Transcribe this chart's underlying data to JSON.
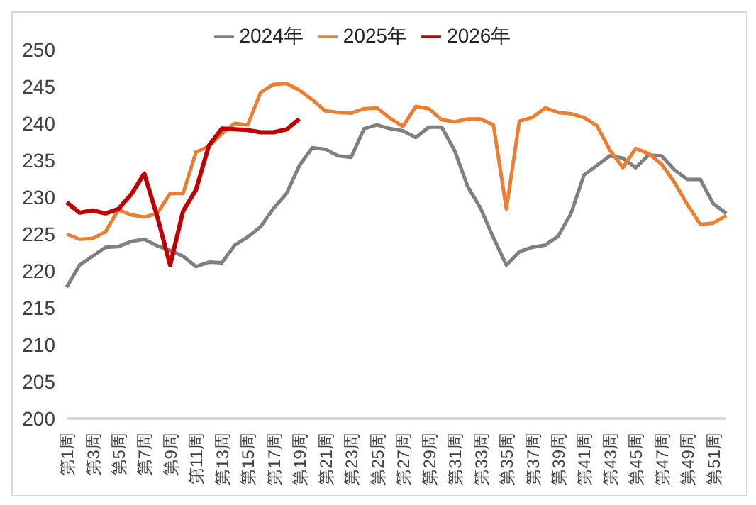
{
  "chart_data": {
    "type": "line",
    "categories": [
      "第1周",
      null,
      "第3周",
      null,
      "第5周",
      null,
      "第7周",
      null,
      "第9周",
      null,
      "第11周",
      null,
      "第13周",
      null,
      "第15周",
      null,
      "第17周",
      null,
      "第19周",
      null,
      "第21周",
      null,
      "第23周",
      null,
      "第25周",
      null,
      "第27周",
      null,
      "第29周",
      null,
      "第31周",
      null,
      "第33周",
      null,
      "第35周",
      null,
      "第37周",
      null,
      "第39周",
      null,
      "第41周",
      null,
      "第43周",
      null,
      "第45周",
      null,
      "第47周",
      null,
      "第49周",
      null,
      "第51周",
      null
    ],
    "series": [
      {
        "name": "2024年",
        "color": "#7f7f7f",
        "values": [
          217.8,
          220.8,
          222,
          223.2,
          223.3,
          224,
          224.3,
          223.4,
          222.8,
          222,
          220.6,
          221.2,
          221.1,
          223.5,
          224.6,
          226,
          228.5,
          230.5,
          234.3,
          236.7,
          236.5,
          235.6,
          235.4,
          239.3,
          239.8,
          239.3,
          239,
          238.1,
          239.5,
          239.5,
          236.3,
          231.5,
          228.5,
          224.5,
          220.8,
          222.6,
          223.2,
          223.5,
          224.7,
          227.8,
          233,
          234.3,
          235.6,
          235.3,
          234,
          235.7,
          235.6,
          233.7,
          232.4,
          232.4,
          229.1,
          227.8
        ]
      },
      {
        "name": "2025年",
        "color": "#ed7d31",
        "values": [
          225,
          224.3,
          224.4,
          225.3,
          228.3,
          227.6,
          227.3,
          227.8,
          230.5,
          230.5,
          236.1,
          236.9,
          238.6,
          240,
          239.8,
          244.2,
          245.3,
          245.4,
          244.5,
          243.2,
          241.7,
          241.5,
          241.4,
          242,
          242.1,
          240.7,
          239.6,
          242.3,
          242,
          240.5,
          240.2,
          240.6,
          240.6,
          239.8,
          228.4,
          240.3,
          240.8,
          242.1,
          241.5,
          241.3,
          240.8,
          239.7,
          236.4,
          234,
          236.6,
          235.9,
          234.5,
          232,
          229,
          226.3,
          226.5,
          227.5
        ]
      },
      {
        "name": "2026年",
        "color": "#c00000",
        "values": [
          229.3,
          227.9,
          228.2,
          227.8,
          228.4,
          230.4,
          233.2,
          227.4,
          220.8,
          228.1,
          231,
          237,
          239.3,
          239.2,
          239.1,
          238.8,
          238.8,
          239.2,
          240.6,
          null,
          null,
          null,
          null,
          null,
          null,
          null,
          null,
          null,
          null,
          null,
          null,
          null,
          null,
          null,
          null,
          null,
          null,
          null,
          null,
          null,
          null,
          null,
          null,
          null,
          null,
          null,
          null,
          null,
          null,
          null,
          null,
          null
        ]
      }
    ],
    "ylim": [
      200,
      250
    ],
    "yticks": [
      200,
      205,
      210,
      215,
      220,
      225,
      230,
      235,
      240,
      245,
      250
    ],
    "grid": false,
    "legend": "top",
    "marker": "none",
    "line_style": "solid"
  }
}
